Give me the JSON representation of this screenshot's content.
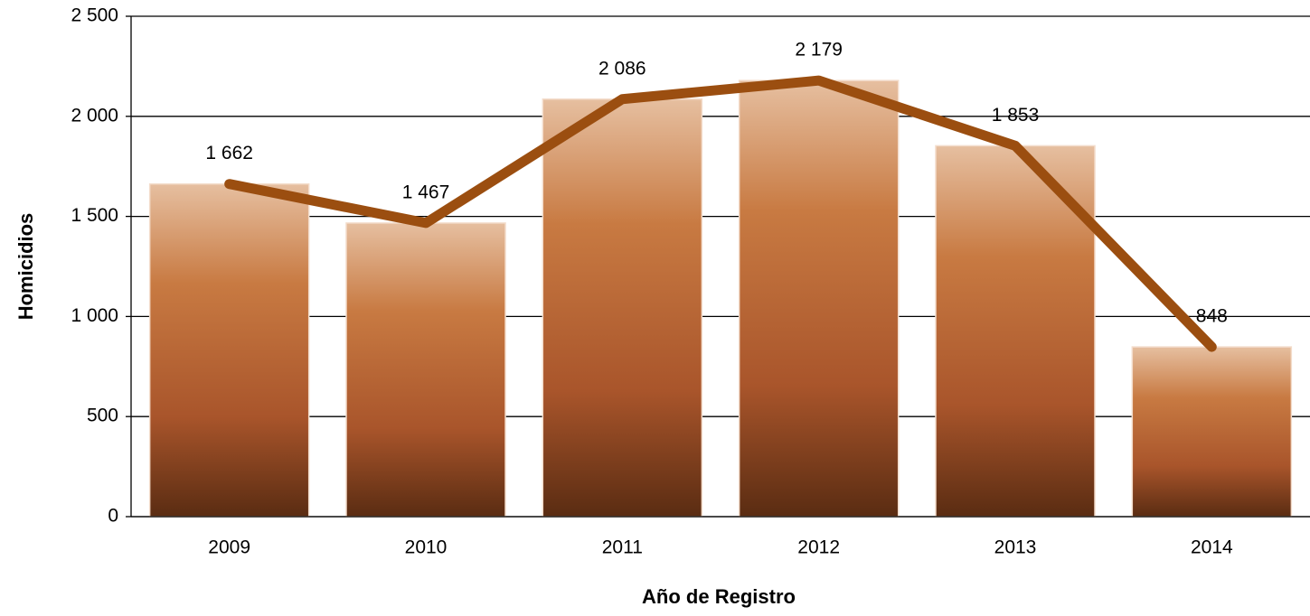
{
  "chart_data": {
    "type": "bar",
    "x_label": "Año de Registro",
    "y_label": "Homicidios",
    "categories": [
      "2009",
      "2010",
      "2011",
      "2012",
      "2013",
      "2014"
    ],
    "series": [
      {
        "type": "bar",
        "color": "#c87a42",
        "values": [
          1662,
          1467,
          2086,
          2179,
          1853,
          848
        ],
        "value_labels": [
          "1 662",
          "1 467",
          "2 086",
          "2 179",
          "1 853",
          "848"
        ]
      },
      {
        "type": "line",
        "color": "#9b4e10",
        "values": [
          1662,
          1467,
          2086,
          2179,
          1853,
          848
        ]
      }
    ],
    "ylim": [
      0,
      2500
    ],
    "yticks": [
      0,
      500,
      {
        "value": 1000,
        "label": "1 000"
      },
      {
        "value": 1500,
        "label": "1 500"
      },
      {
        "value": 2000,
        "label": "2 000"
      },
      {
        "value": 2500,
        "label": "2 500"
      }
    ],
    "grid": true
  }
}
